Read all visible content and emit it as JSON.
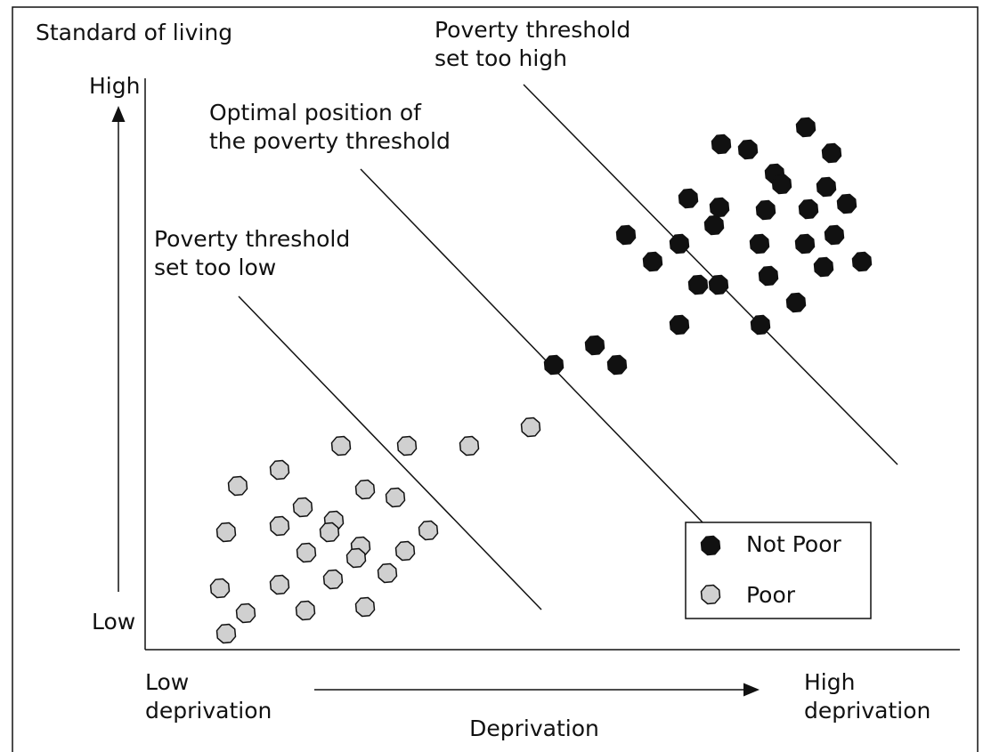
{
  "title": "Standard of living",
  "y_axis": {
    "high": "High",
    "low": "Low"
  },
  "x_axis": {
    "low": [
      "Low",
      "deprivation"
    ],
    "high": [
      "High",
      "deprivation"
    ],
    "label": "Deprivation"
  },
  "annotations": {
    "too_high": [
      "Poverty threshold",
      "set too high"
    ],
    "optimal": [
      "Optimal position of",
      "the poverty threshold"
    ],
    "too_low": [
      "Poverty threshold",
      "set too low"
    ]
  },
  "legend": {
    "not_poor": "Not Poor",
    "poor": "Poor"
  }
}
